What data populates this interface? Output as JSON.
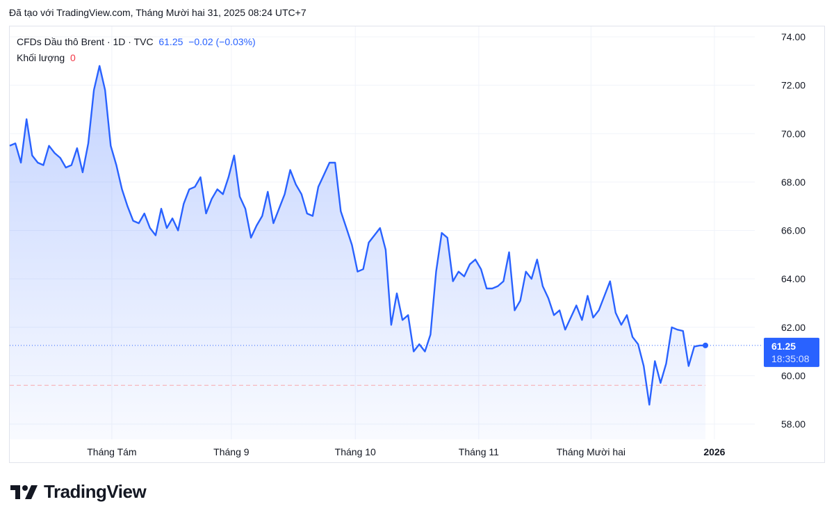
{
  "caption": "Đã tạo với TradingView.com, Tháng Mười hai 31, 2025 08:24 UTC+7",
  "legend": {
    "symbol": "CFDs Dầu thô Brent · 1D · TVC",
    "last": "61.25",
    "change": "−0.02 (−0.03%)",
    "volume_label": "Khối lượng",
    "volume_value": "0"
  },
  "price_label": {
    "price": "61.25",
    "countdown": "18:35:08"
  },
  "brand": "TradingView",
  "colors": {
    "line": "#2962ff",
    "grid": "#f0f3fa",
    "prev_close": "#f7a7ad"
  },
  "chart_data": {
    "type": "area",
    "title": "CFDs Dầu thô Brent · 1D · TVC",
    "ylim": [
      57.4,
      74.5
    ],
    "y_ticks": [
      "58.00",
      "60.00",
      "62.00",
      "64.00",
      "66.00",
      "68.00",
      "70.00",
      "72.00",
      "74.00"
    ],
    "x_ticks": [
      {
        "label": "Tháng Tám",
        "index": 18.2
      },
      {
        "label": "Tháng 9",
        "index": 39.5
      },
      {
        "label": "Tháng 10",
        "index": 61.6
      },
      {
        "label": "Tháng 11",
        "index": 83.6
      },
      {
        "label": "Tháng Mười hai",
        "index": 103.6
      },
      {
        "label": "2026",
        "index": 125.6
      }
    ],
    "prev_close": 59.6,
    "values": [
      69.5,
      69.6,
      68.8,
      70.6,
      69.1,
      68.8,
      68.7,
      69.5,
      69.2,
      69.0,
      68.6,
      68.7,
      69.4,
      68.4,
      69.6,
      71.8,
      72.8,
      71.8,
      69.5,
      68.7,
      67.7,
      67.0,
      66.4,
      66.3,
      66.7,
      66.1,
      65.8,
      66.9,
      66.1,
      66.5,
      66.0,
      67.1,
      67.7,
      67.8,
      68.2,
      66.7,
      67.3,
      67.7,
      67.5,
      68.2,
      69.1,
      67.4,
      66.9,
      65.7,
      66.2,
      66.6,
      67.6,
      66.3,
      66.9,
      67.5,
      68.5,
      67.9,
      67.5,
      66.7,
      66.6,
      67.8,
      68.3,
      68.8,
      68.8,
      66.8,
      66.1,
      65.4,
      64.3,
      64.4,
      65.5,
      65.8,
      66.1,
      65.2,
      62.1,
      63.4,
      62.3,
      62.5,
      61.0,
      61.3,
      61.0,
      61.7,
      64.3,
      65.9,
      65.7,
      63.9,
      64.3,
      64.1,
      64.6,
      64.8,
      64.4,
      63.6,
      63.6,
      63.7,
      63.9,
      65.1,
      62.7,
      63.1,
      64.3,
      64.0,
      64.8,
      63.7,
      63.2,
      62.5,
      62.7,
      61.9,
      62.4,
      62.9,
      62.3,
      63.3,
      62.4,
      62.7,
      63.3,
      63.9,
      62.6,
      62.1,
      62.5,
      61.6,
      61.3,
      60.4,
      58.8,
      60.6,
      59.7,
      60.5,
      62.0,
      61.9,
      61.85,
      60.4,
      61.2,
      61.25,
      61.25
    ]
  }
}
